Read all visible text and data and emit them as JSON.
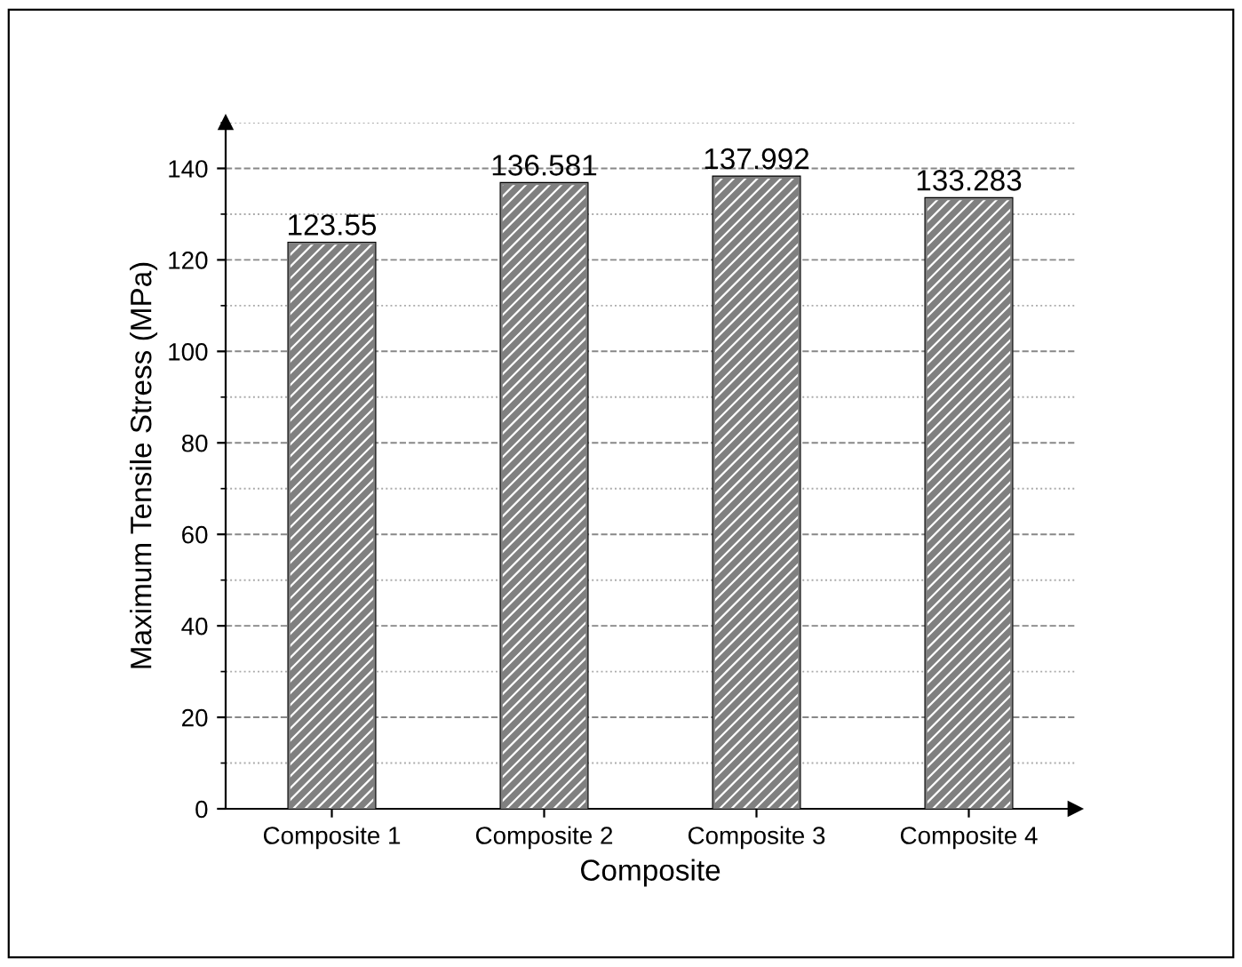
{
  "chart_data": {
    "type": "bar",
    "xlabel": "Composite",
    "ylabel": "Maximum Tensile Stress (MPa)",
    "categories": [
      "Composite 1",
      "Composite 2",
      "Composite 3",
      "Composite 4"
    ],
    "values": [
      123.55,
      136.581,
      137.992,
      133.283
    ],
    "color": "#808080",
    "ylim": [
      0,
      150
    ],
    "yticks": [
      0,
      20,
      40,
      60,
      80,
      100,
      120,
      140
    ],
    "grid": "y",
    "data_labels": true
  }
}
